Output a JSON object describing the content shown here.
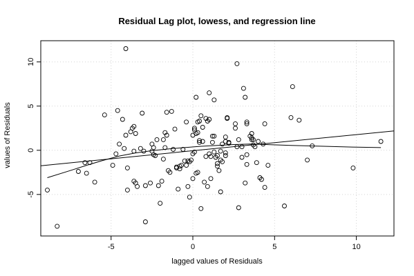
{
  "chart_data": {
    "type": "scatter",
    "title": "Residual Lag plot, lowess, and regression line",
    "xlabel": "lagged values of Residuals",
    "ylabel": "values of Residuals",
    "xlim": [
      -9.3,
      12.3
    ],
    "ylim": [
      -9.7,
      12.4
    ],
    "x_ticks": [
      -5,
      0,
      5,
      10
    ],
    "y_ticks": [
      -5,
      0,
      5,
      10
    ],
    "grid": true,
    "grid_style": "dotted",
    "marker": "open-circle",
    "points": [
      [
        -8.9,
        -4.5
      ],
      [
        -8.3,
        -8.6
      ],
      [
        -7.0,
        -2.4
      ],
      [
        -6.6,
        -1.4
      ],
      [
        -6.5,
        -2.6
      ],
      [
        -6.3,
        -1.4
      ],
      [
        -6.0,
        -3.6
      ],
      [
        -5.4,
        4.0
      ],
      [
        -4.9,
        -1.7
      ],
      [
        -4.7,
        -0.4
      ],
      [
        -4.6,
        4.5
      ],
      [
        -4.5,
        0.7
      ],
      [
        -4.3,
        3.5
      ],
      [
        -4.2,
        0.2
      ],
      [
        -4.1,
        11.5
      ],
      [
        -4.1,
        1.7
      ],
      [
        -4.0,
        -2.0
      ],
      [
        -4.0,
        -4.5
      ],
      [
        -3.8,
        2.1
      ],
      [
        -3.7,
        2.5
      ],
      [
        -3.6,
        -3.5
      ],
      [
        -3.6,
        -0.1
      ],
      [
        -3.6,
        2.7
      ],
      [
        -3.5,
        1.9
      ],
      [
        -3.5,
        -3.7
      ],
      [
        -3.4,
        -4.1
      ],
      [
        -3.2,
        0.2
      ],
      [
        -3.1,
        4.2
      ],
      [
        -3.0,
        -0.1
      ],
      [
        -2.9,
        -4.0
      ],
      [
        -2.9,
        -8.1
      ],
      [
        -2.6,
        -3.7
      ],
      [
        -2.5,
        0.7
      ],
      [
        -2.5,
        -0.1
      ],
      [
        -2.4,
        -0.5
      ],
      [
        -2.4,
        0.3
      ],
      [
        -2.3,
        -0.6
      ],
      [
        -2.2,
        1.2
      ],
      [
        -2.1,
        -4.0
      ],
      [
        -2.0,
        -6.0
      ],
      [
        -1.9,
        -3.5
      ],
      [
        -1.8,
        -1.0
      ],
      [
        -1.8,
        1.2
      ],
      [
        -1.7,
        0.3
      ],
      [
        -1.7,
        2.0
      ],
      [
        -1.6,
        4.3
      ],
      [
        -1.6,
        1.7
      ],
      [
        -1.5,
        -2.3
      ],
      [
        -1.4,
        -2.5
      ],
      [
        -1.3,
        4.4
      ],
      [
        -1.2,
        0.1
      ],
      [
        -1.1,
        2.4
      ],
      [
        -1.0,
        -1.9
      ],
      [
        -1.0,
        -2.0
      ],
      [
        -0.9,
        -4.4
      ],
      [
        -0.8,
        -1.8
      ],
      [
        -0.8,
        -2.1
      ],
      [
        -0.7,
        -1.7
      ],
      [
        -0.6,
        0.1
      ],
      [
        -0.5,
        -1.2
      ],
      [
        -0.4,
        3.2
      ],
      [
        -0.4,
        -1.7
      ],
      [
        -0.3,
        -4.1
      ],
      [
        -0.3,
        -1.2
      ],
      [
        -0.2,
        -1.3
      ],
      [
        -0.2,
        -5.3
      ],
      [
        -0.1,
        -1.1
      ],
      [
        0.0,
        1.7
      ],
      [
        0.0,
        -3.2
      ],
      [
        0.0,
        -0.4
      ],
      [
        0.1,
        -0.2
      ],
      [
        0.1,
        2.5
      ],
      [
        0.1,
        2.3
      ],
      [
        0.2,
        -2.6
      ],
      [
        0.2,
        1.9
      ],
      [
        0.2,
        6.0
      ],
      [
        0.3,
        -2.5
      ],
      [
        0.3,
        3.2
      ],
      [
        0.3,
        2.0
      ],
      [
        0.4,
        0.9
      ],
      [
        0.4,
        1.1
      ],
      [
        0.4,
        3.3
      ],
      [
        0.5,
        3.9
      ],
      [
        0.5,
        -6.6
      ],
      [
        0.6,
        1.0
      ],
      [
        0.6,
        2.6
      ],
      [
        0.7,
        -3.6
      ],
      [
        0.8,
        3.6
      ],
      [
        0.8,
        -0.7
      ],
      [
        0.9,
        3.3
      ],
      [
        0.9,
        -4.1
      ],
      [
        1.0,
        -0.4
      ],
      [
        1.0,
        6.5
      ],
      [
        1.0,
        3.5
      ],
      [
        1.1,
        -3.2
      ],
      [
        1.1,
        -0.7
      ],
      [
        1.2,
        0.9
      ],
      [
        1.2,
        1.6
      ],
      [
        1.3,
        -0.2
      ],
      [
        1.3,
        5.7
      ],
      [
        1.3,
        1.6
      ],
      [
        1.4,
        -0.8
      ],
      [
        1.5,
        -1.5
      ],
      [
        1.5,
        -1.8
      ],
      [
        1.5,
        -0.6
      ],
      [
        1.6,
        -2.3
      ],
      [
        1.7,
        -1.1
      ],
      [
        1.7,
        -4.7
      ],
      [
        1.7,
        -0.1
      ],
      [
        1.8,
        -1.3
      ],
      [
        1.8,
        0.7
      ],
      [
        2.0,
        -0.3
      ],
      [
        2.0,
        1.0
      ],
      [
        2.0,
        1.5
      ],
      [
        2.0,
        -0.6
      ],
      [
        2.1,
        3.6
      ],
      [
        2.1,
        3.7
      ],
      [
        2.2,
        0.9
      ],
      [
        2.2,
        0.8
      ],
      [
        2.6,
        2.5
      ],
      [
        2.6,
        3.0
      ],
      [
        2.7,
        9.8
      ],
      [
        2.7,
        0.4
      ],
      [
        2.8,
        -6.5
      ],
      [
        2.8,
        1.2
      ],
      [
        3.0,
        0.4
      ],
      [
        3.0,
        -0.8
      ],
      [
        3.1,
        7.0
      ],
      [
        3.2,
        -3.7
      ],
      [
        3.2,
        6.0
      ],
      [
        3.3,
        3.2
      ],
      [
        3.3,
        3.0
      ],
      [
        3.3,
        -1.6
      ],
      [
        3.3,
        -0.5
      ],
      [
        3.5,
        1.6
      ],
      [
        3.6,
        1.9
      ],
      [
        3.6,
        1.4
      ],
      [
        3.6,
        1.2
      ],
      [
        3.7,
        1.2
      ],
      [
        3.7,
        0.6
      ],
      [
        3.8,
        0.4
      ],
      [
        3.9,
        -1.4
      ],
      [
        4.0,
        1.0
      ],
      [
        4.1,
        -3.1
      ],
      [
        4.2,
        -3.3
      ],
      [
        4.3,
        0.7
      ],
      [
        4.4,
        3.0
      ],
      [
        4.4,
        -4.2
      ],
      [
        4.6,
        -1.7
      ],
      [
        5.6,
        -6.3
      ],
      [
        6.0,
        3.7
      ],
      [
        6.1,
        7.2
      ],
      [
        6.5,
        3.4
      ],
      [
        7.0,
        -1.1
      ],
      [
        7.3,
        0.5
      ],
      [
        9.8,
        -2.0
      ],
      [
        11.5,
        1.0
      ]
    ],
    "regression_line": {
      "x": [
        -9.3,
        12.3
      ],
      "y": [
        -1.75,
        2.19
      ]
    },
    "lowess_line": {
      "x": [
        -8.9,
        -7.5,
        -6.5,
        -5.5,
        -4.5,
        -3.5,
        -2.5,
        -1.5,
        -0.5,
        0.5,
        1.5,
        2.5,
        3.5,
        4.5,
        6.0,
        8.0,
        10.0,
        11.5
      ],
      "y": [
        -3.1,
        -2.3,
        -1.7,
        -1.15,
        -0.65,
        -0.3,
        -0.05,
        0.15,
        0.3,
        0.45,
        0.55,
        0.65,
        0.7,
        0.65,
        0.55,
        0.45,
        0.35,
        0.3
      ]
    }
  }
}
